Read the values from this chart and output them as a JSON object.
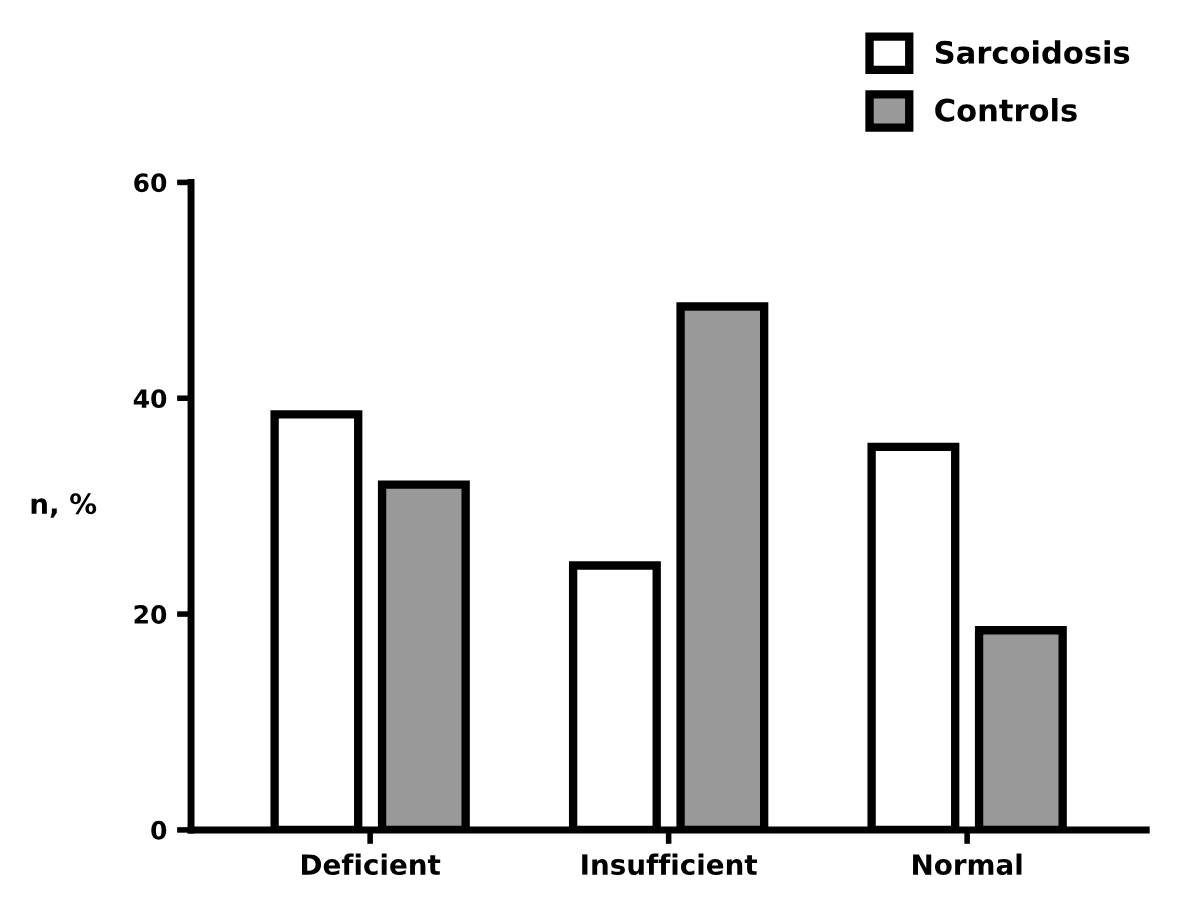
{
  "chart_data": {
    "type": "bar",
    "ylabel": "n, %",
    "categories": [
      "Deficient",
      "Insufficient",
      "Normal"
    ],
    "series": [
      {
        "name": "Sarcoidosis",
        "color": "#ffffff",
        "values": [
          38.5,
          24.5,
          35.5
        ]
      },
      {
        "name": "Controls",
        "color": "#999999",
        "values": [
          32,
          48.5,
          18.5
        ]
      }
    ],
    "ylim": [
      0,
      60
    ],
    "yticks": [
      0,
      20,
      40,
      60
    ],
    "grid": false,
    "legend": "top right"
  }
}
